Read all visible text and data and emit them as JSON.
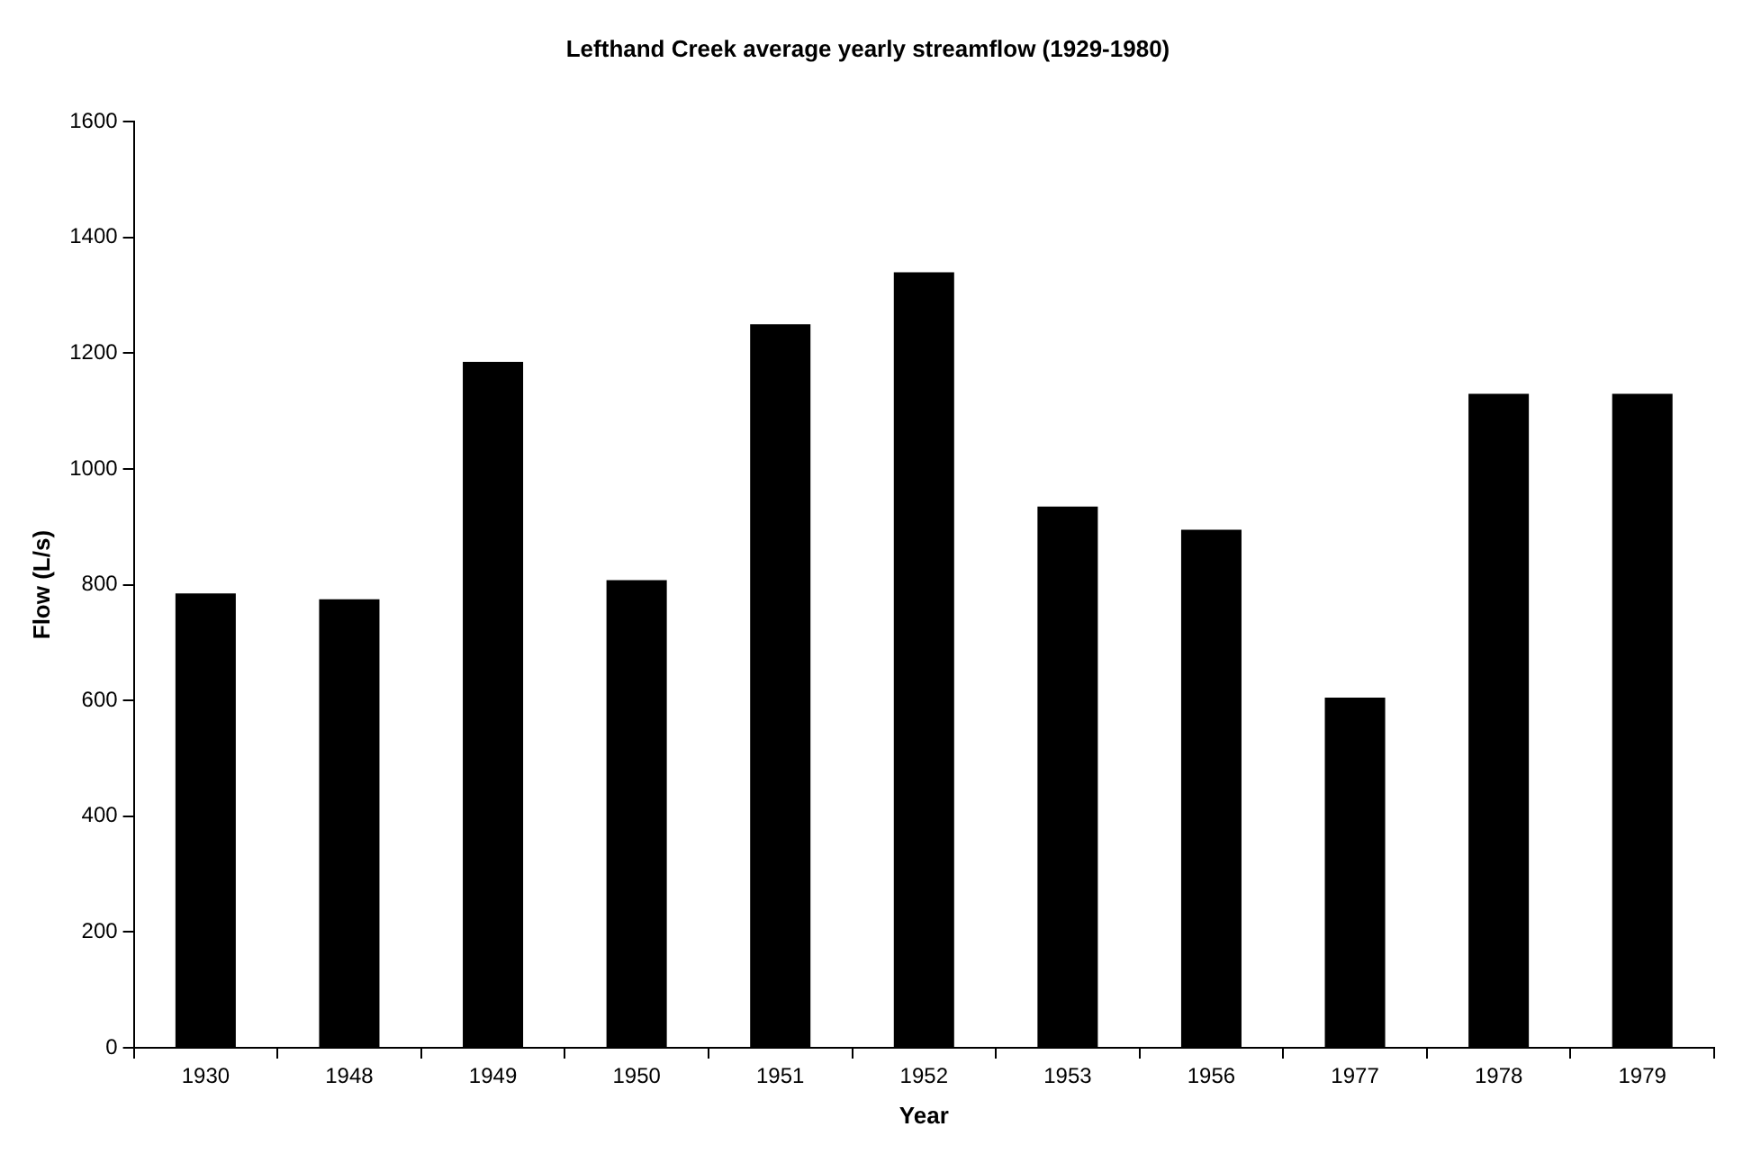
{
  "chart_data": {
    "type": "bar",
    "title": "Lefthand Creek average yearly streamflow (1929-1980)",
    "xlabel": "Year",
    "ylabel": "Flow (L/s)",
    "categories": [
      "1930",
      "1948",
      "1949",
      "1950",
      "1951",
      "1952",
      "1953",
      "1956",
      "1977",
      "1978",
      "1979"
    ],
    "values": [
      785,
      775,
      1185,
      808,
      1250,
      1340,
      935,
      895,
      605,
      1130,
      1130
    ],
    "color": "#000000",
    "ylim": [
      0,
      1600
    ],
    "yticks": [
      0,
      200,
      400,
      600,
      800,
      1000,
      1200,
      1400,
      1600
    ],
    "grid": false,
    "legend": false
  }
}
